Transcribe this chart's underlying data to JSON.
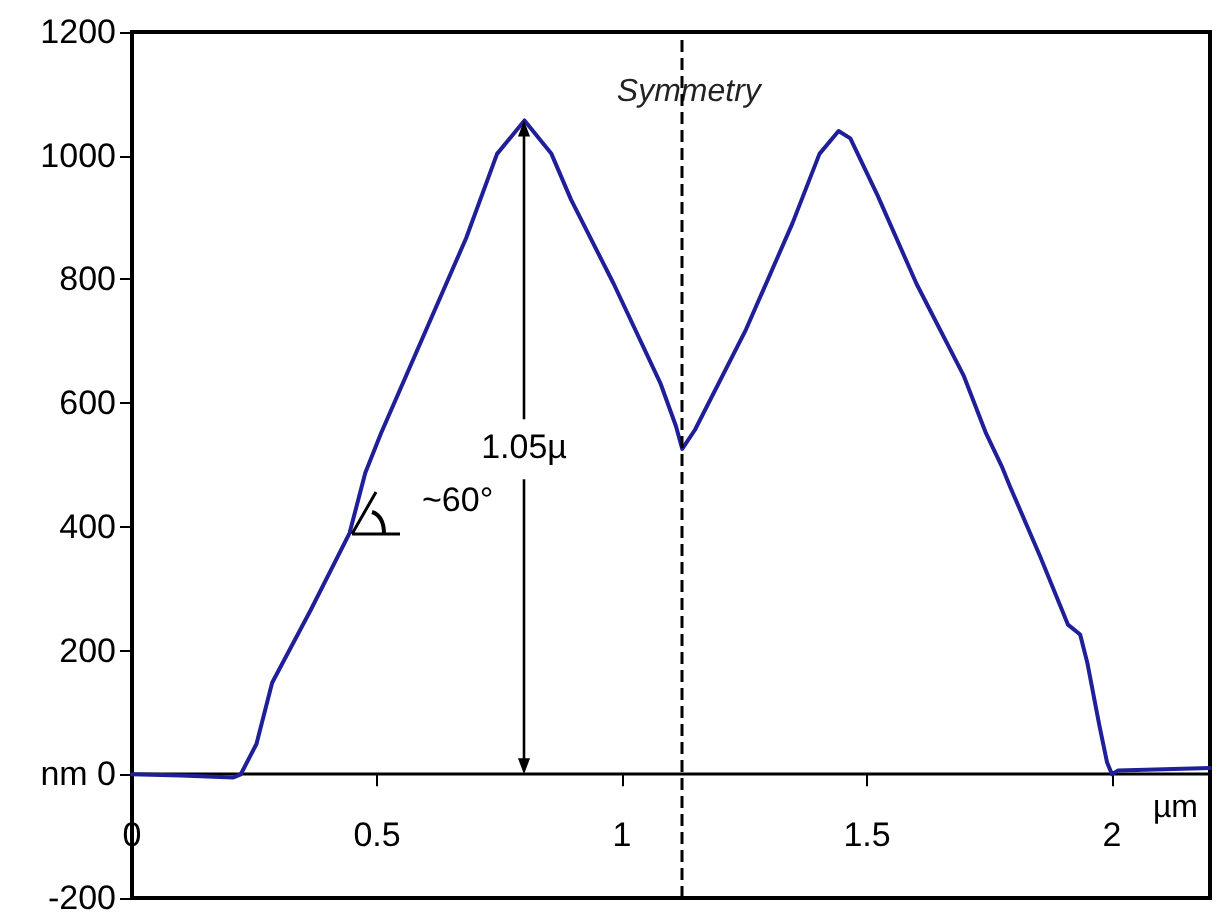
{
  "chart_data": {
    "type": "line",
    "xlabel": "µm",
    "x": [
      0,
      0.1,
      0.207,
      0.222,
      0.254,
      0.286,
      0.365,
      0.444,
      0.476,
      0.508,
      0.682,
      0.745,
      0.801,
      0.856,
      0.896,
      0.983,
      1.079,
      1.11,
      1.123,
      1.149,
      1.253,
      1.348,
      1.403,
      1.442,
      1.466,
      1.522,
      1.601,
      1.697,
      1.743,
      1.776,
      1.792,
      1.853,
      1.91,
      1.935,
      1.95,
      1.974,
      1.99,
      2.0,
      2.012,
      2.2
    ],
    "series": [
      {
        "color": "#1f1f99",
        "values": [
          0,
          -2,
          -5,
          0,
          49,
          148,
          266,
          390,
          487,
          551,
          867,
          1003,
          1057,
          1003,
          929,
          793,
          631,
          563,
          526,
          557,
          719,
          891,
          1003,
          1040,
          1028,
          935,
          793,
          645,
          551,
          496,
          465,
          353,
          242,
          226,
          179,
          80,
          19,
          0,
          6,
          10
        ]
      }
    ],
    "xlim": [
      0,
      2.2
    ],
    "xticks": [
      0,
      0.5,
      1,
      1.5,
      2
    ],
    "ylim": [
      -200,
      1200
    ],
    "yticks": [
      -200,
      {
        "value": 0,
        "label": "nm 0"
      },
      200,
      400,
      600,
      800,
      1000,
      1200
    ],
    "ref_lines": [
      {
        "axis": "x",
        "value": 1.12,
        "label": "Symmetry",
        "line_style": "dashed"
      }
    ],
    "annotations": [
      {
        "text": "1.05µ",
        "x": 0.8,
        "y": 1057
      },
      "~60°"
    ],
    "marker": "none",
    "line_style": "solid"
  }
}
